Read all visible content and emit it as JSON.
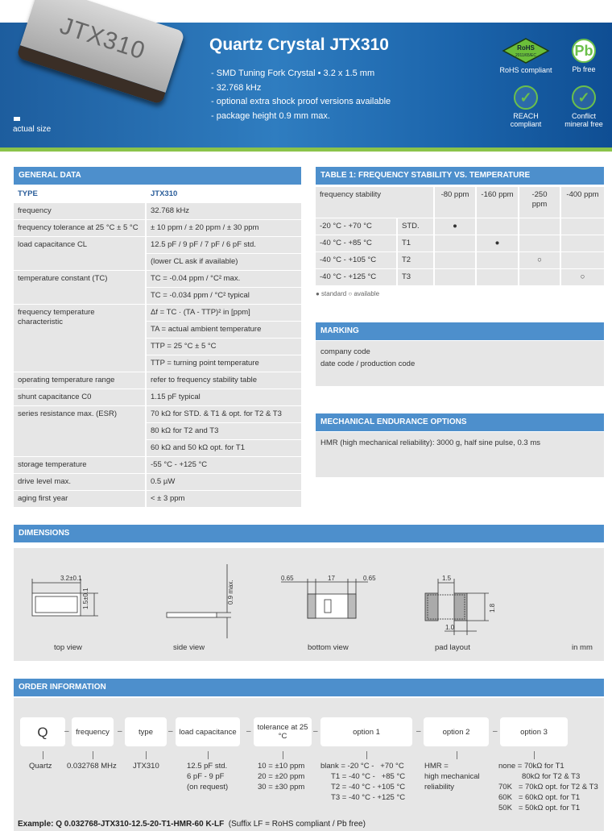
{
  "header": {
    "title": "Quartz Crystal JTX310",
    "chip_marking": "JTX310",
    "features": [
      "- SMD Tuning Fork Crystal • 3.2 x 1.5 mm",
      "- 32.768 kHz",
      "- optional extra shock proof versions available",
      "- package height 0.9 mm max."
    ],
    "actual_size": "actual size",
    "badges": [
      {
        "label": "RoHS compliant",
        "icon": "rohs-diamond-icon",
        "text": "RoHS",
        "subtext": "2011/65/EC"
      },
      {
        "label": "Pb free",
        "icon": "pb-free-icon",
        "text": "Pb"
      },
      {
        "label": "REACH compliant",
        "icon": "checkmark-icon"
      },
      {
        "label": "Conflict mineral free",
        "icon": "checkmark-icon"
      }
    ],
    "colors": {
      "banner": "#1d5d9e",
      "accent": "#4d8fcc",
      "green": "#8bc34a"
    }
  },
  "general": {
    "heading": "GENERAL DATA",
    "type_label": "TYPE",
    "type_value": "JTX310",
    "rows": [
      {
        "label": "frequency",
        "values": [
          "32.768 kHz"
        ]
      },
      {
        "label": "frequency tolerance at 25 °C ± 5 °C",
        "values": [
          "± 10 ppm / ± 20 ppm / ± 30 ppm"
        ]
      },
      {
        "label": "load capacitance CL",
        "values": [
          "12.5 pF / 9 pF / 7 pF / 6 pF std.",
          "(lower CL ask if available)"
        ]
      },
      {
        "label": "temperature constant (TC)",
        "values": [
          "TC = -0.04 ppm / °C² max.",
          "TC = -0.034 ppm / °C² typical"
        ]
      },
      {
        "label": "frequency temperature characteristic",
        "values": [
          "Δf = TC · (TA - TTP)² in [ppm]",
          "TA = actual ambient temperature",
          "TTP = 25 °C ± 5 °C",
          "TTP = turning point temperature"
        ]
      },
      {
        "label": "operating temperature range",
        "values": [
          "refer to frequency stability table"
        ]
      },
      {
        "label": "shunt capacitance C0",
        "values": [
          "1.15 pF typical"
        ]
      },
      {
        "label": "series resistance max. (ESR)",
        "values": [
          "70 kΩ for STD. & T1 & opt. for T2 & T3",
          "80 kΩ for T2 and T3",
          "60 kΩ and 50 kΩ opt. for T1"
        ]
      },
      {
        "label": "storage temperature",
        "values": [
          "-55 °C - +125 °C"
        ]
      },
      {
        "label": "drive level max.",
        "values": [
          "0.5 µW"
        ]
      },
      {
        "label": "aging first year",
        "values": [
          "< ± 3 ppm"
        ]
      }
    ]
  },
  "table1": {
    "heading": "TABLE 1: FREQUENCY STABILITY VS. TEMPERATURE",
    "row_header": "frequency stability",
    "columns": [
      "-80 ppm",
      "-160 ppm",
      "-250 ppm",
      "-400 ppm"
    ],
    "rows": [
      {
        "range": "-20 °C -   +70 °C",
        "code": "STD.",
        "marks": [
          "●",
          "",
          "",
          ""
        ]
      },
      {
        "range": "-40 °C -   +85 °C",
        "code": "T1",
        "marks": [
          "",
          "●",
          "",
          ""
        ]
      },
      {
        "range": "-40 °C - +105 °C",
        "code": "T2",
        "marks": [
          "",
          "",
          "○",
          ""
        ]
      },
      {
        "range": "-40 °C - +125 °C",
        "code": "T3",
        "marks": [
          "",
          "",
          "",
          "○"
        ]
      }
    ],
    "legend_standard": "● standard",
    "legend_available": "○ available"
  },
  "marking": {
    "heading": "MARKING",
    "lines": [
      "company code",
      "date code / production code"
    ]
  },
  "mechanical": {
    "heading": "MECHANICAL ENDURANCE OPTIONS",
    "text": "HMR (high mechanical reliability): 3000 g, half sine pulse, 0.3 ms"
  },
  "dimensions": {
    "heading": "DIMENSIONS",
    "views": [
      "top view",
      "side view",
      "bottom view",
      "pad layout"
    ],
    "unit": "in mm",
    "dims": {
      "top_w": "3.2±0.1",
      "top_h": "1.5±0.1",
      "side_h": "0.9 max.",
      "bot_a": "0.65",
      "bot_b": "17",
      "bot_c": "0.65",
      "pad_w": "1.5",
      "pad_h": "1.8",
      "pad_g": "1.0"
    }
  },
  "order": {
    "heading": "ORDER INFORMATION",
    "boxes": [
      "Q",
      "frequency",
      "type",
      "load capacitance",
      "tolerance at 25 °C",
      "option 1",
      "option 2",
      "option 3"
    ],
    "details": [
      "Quartz",
      "0.032768 MHz",
      "JTX310",
      "12.5 pF std.\n6 pF - 9 pF\n(on request)",
      "10 = ±10 ppm\n20 = ±20 ppm\n30 = ±30 ppm",
      "blank = -20 °C -   +70 °C\n     T1 = -40 °C -   +85 °C\n     T2 = -40 °C - +105 °C\n     T3 = -40 °C - +125 °C",
      "HMR =\nhigh mechanical\nreliability",
      "none = 70kΩ for T1\n           80kΩ for T2 & T3\n70K   = 70kΩ opt. for T2 & T3\n60K   = 60kΩ opt. for T1\n50K   = 50kΩ opt. for T1"
    ],
    "example": "Example: Q 0.032768-JTX310-12.5-20-T1-HMR-60 K-LF",
    "example_note": "(Suffix LF = RoHS compliant / Pb free)"
  }
}
